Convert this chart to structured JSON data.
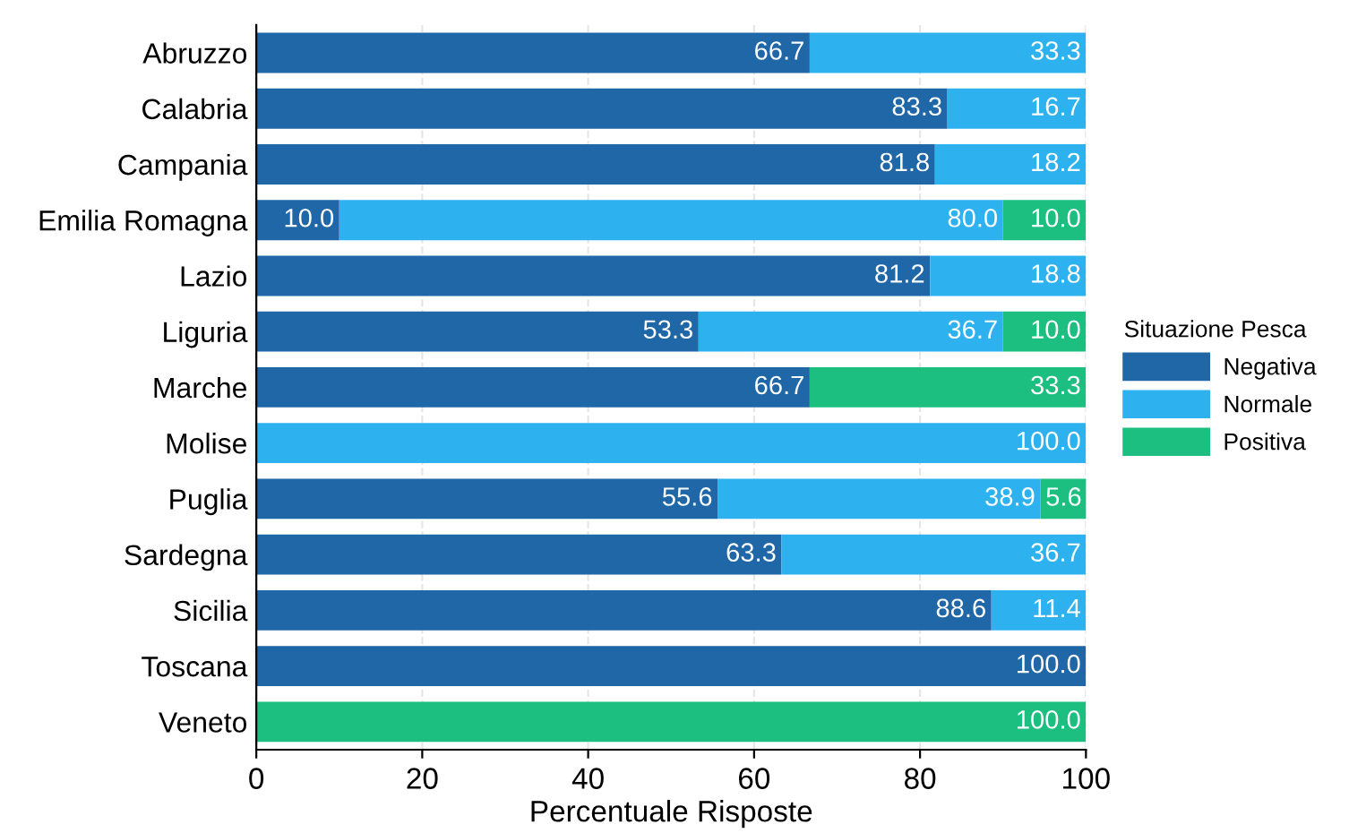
{
  "chart_data": {
    "type": "bar",
    "orientation": "horizontal",
    "stacked": true,
    "xlabel": "Percentuale Risposte",
    "legend_title": "Situazione Pesca",
    "legend": "right",
    "categories": [
      "Abruzzo",
      "Calabria",
      "Campania",
      "Emilia Romagna",
      "Lazio",
      "Liguria",
      "Marche",
      "Molise",
      "Puglia",
      "Sardegna",
      "Sicilia",
      "Toscana",
      "Veneto"
    ],
    "series": [
      {
        "name": "Negativa",
        "color": "#1f67a6",
        "values": [
          66.7,
          83.3,
          81.8,
          10.0,
          81.2,
          53.3,
          66.7,
          null,
          55.6,
          63.3,
          88.6,
          100.0,
          null
        ],
        "value_labels": [
          "66.7",
          "83.3",
          "81.8",
          "10.0",
          "81.2",
          "53.3",
          "66.7",
          null,
          "55.6",
          "63.3",
          "88.6",
          "100.0",
          null
        ]
      },
      {
        "name": "Normale",
        "color": "#2eb2ef",
        "values": [
          33.3,
          16.7,
          18.2,
          80.0,
          18.8,
          36.7,
          null,
          100.0,
          38.9,
          36.7,
          11.4,
          null,
          null
        ],
        "value_labels": [
          "33.3",
          "16.7",
          "18.2",
          "80.0",
          "18.8",
          "36.7",
          null,
          "100.0",
          "38.9",
          "36.7",
          "11.4",
          null,
          null
        ]
      },
      {
        "name": "Positiva",
        "color": "#1dbf80",
        "values": [
          null,
          null,
          null,
          10.0,
          null,
          10.0,
          33.3,
          null,
          5.6,
          null,
          null,
          null,
          100.0
        ],
        "value_labels": [
          null,
          null,
          null,
          "10.0",
          null,
          "10.0",
          "33.3",
          null,
          "5.6",
          null,
          null,
          null,
          "100.0"
        ]
      }
    ],
    "xlim": [
      0,
      100
    ],
    "xticks": [
      0,
      20,
      40,
      60,
      80,
      100
    ],
    "grid": "x"
  }
}
